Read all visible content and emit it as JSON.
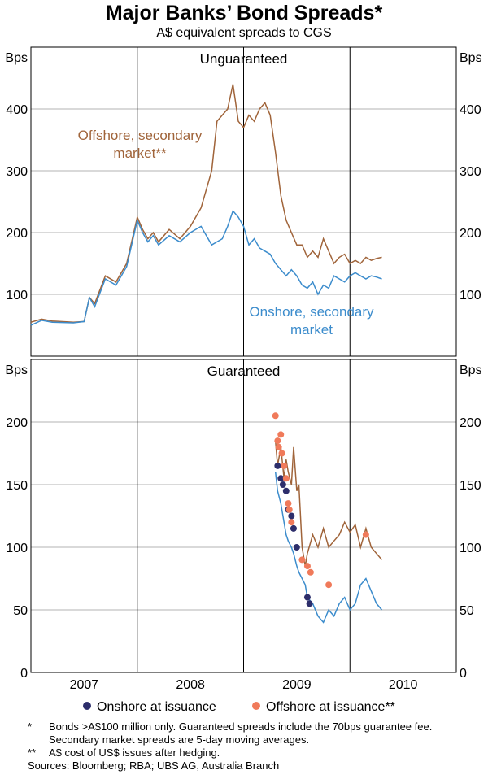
{
  "title": "Major Banks’ Bond Spreads*",
  "subtitle": "A$ equivalent spreads to CGS",
  "chart_data": [
    {
      "type": "line",
      "panel": "Unguaranteed",
      "ylabel": "Bps",
      "ylim": [
        0,
        500
      ],
      "yticks": [
        "100",
        "200",
        "300",
        "400"
      ],
      "xlim": [
        2006.5,
        2010.5
      ],
      "colors": {
        "offshore": "#a0643a",
        "onshore": "#3c8ccc",
        "onshore_dots": "#2d2e6b",
        "offshore_dots": "#f07a5a",
        "grid": "#b3b3b3"
      },
      "series": [
        {
          "name": "Offshore, secondary market**",
          "x": [
            2006.5,
            2006.6,
            2006.7,
            2006.9,
            2007.0,
            2007.05,
            2007.1,
            2007.2,
            2007.3,
            2007.4,
            2007.5,
            2007.55,
            2007.6,
            2007.65,
            2007.7,
            2007.8,
            2007.9,
            2008.0,
            2008.1,
            2008.2,
            2008.25,
            2008.3,
            2008.35,
            2008.4,
            2008.45,
            2008.5,
            2008.55,
            2008.6,
            2008.65,
            2008.7,
            2008.75,
            2008.8,
            2008.85,
            2008.9,
            2008.95,
            2009.0,
            2009.05,
            2009.1,
            2009.15,
            2009.2,
            2009.25,
            2009.3,
            2009.35,
            2009.4,
            2009.45,
            2009.5,
            2009.55,
            2009.6,
            2009.65,
            2009.7,
            2009.75,
            2009.8
          ],
          "values": [
            55,
            60,
            57,
            55,
            56,
            95,
            85,
            130,
            120,
            150,
            225,
            205,
            190,
            200,
            185,
            205,
            190,
            210,
            240,
            300,
            380,
            390,
            400,
            440,
            380,
            370,
            390,
            380,
            400,
            410,
            390,
            330,
            260,
            220,
            200,
            180,
            180,
            160,
            170,
            160,
            190,
            170,
            150,
            160,
            165,
            150,
            155,
            150,
            160,
            155,
            158,
            160
          ]
        },
        {
          "name": "Onshore, secondary market",
          "x": [
            2006.5,
            2006.6,
            2006.7,
            2006.9,
            2007.0,
            2007.05,
            2007.1,
            2007.2,
            2007.3,
            2007.4,
            2007.5,
            2007.55,
            2007.6,
            2007.65,
            2007.7,
            2007.8,
            2007.9,
            2008.0,
            2008.1,
            2008.2,
            2008.25,
            2008.3,
            2008.35,
            2008.4,
            2008.45,
            2008.5,
            2008.55,
            2008.6,
            2008.65,
            2008.7,
            2008.75,
            2008.8,
            2008.85,
            2008.9,
            2008.95,
            2009.0,
            2009.05,
            2009.1,
            2009.15,
            2009.2,
            2009.25,
            2009.3,
            2009.35,
            2009.4,
            2009.45,
            2009.5,
            2009.55,
            2009.6,
            2009.65,
            2009.7,
            2009.75,
            2009.8
          ],
          "values": [
            50,
            58,
            55,
            54,
            56,
            95,
            80,
            125,
            115,
            145,
            220,
            200,
            185,
            195,
            180,
            195,
            185,
            200,
            210,
            180,
            185,
            190,
            210,
            235,
            225,
            210,
            180,
            190,
            175,
            170,
            165,
            150,
            140,
            130,
            140,
            130,
            115,
            110,
            120,
            100,
            115,
            110,
            130,
            125,
            120,
            130,
            135,
            130,
            125,
            130,
            128,
            125
          ]
        }
      ],
      "labels": {
        "offshore": [
          "Offshore, secondary",
          "market**"
        ],
        "onshore": [
          "Onshore, secondary",
          "market"
        ]
      }
    },
    {
      "type": "line",
      "panel": "Guaranteed",
      "ylabel": "Bps",
      "ylim": [
        0,
        250
      ],
      "yticks": [
        "0",
        "50",
        "100",
        "150",
        "200"
      ],
      "xlim": [
        2006.5,
        2010.5
      ],
      "categories": [
        "2007",
        "2008",
        "2009",
        "2010"
      ],
      "series": [
        {
          "name": "Offshore, secondary market**",
          "x": [
            2008.8,
            2008.82,
            2008.85,
            2008.88,
            2008.9,
            2008.92,
            2008.95,
            2008.97,
            2009.0,
            2009.02,
            2009.05,
            2009.08,
            2009.1,
            2009.15,
            2009.2,
            2009.25,
            2009.3,
            2009.35,
            2009.4,
            2009.45,
            2009.5,
            2009.55,
            2009.6,
            2009.65,
            2009.7,
            2009.75,
            2009.8
          ],
          "values": [
            185,
            165,
            180,
            155,
            170,
            160,
            150,
            180,
            145,
            150,
            100,
            85,
            95,
            110,
            100,
            115,
            100,
            105,
            110,
            120,
            112,
            118,
            100,
            115,
            100,
            95,
            90
          ]
        },
        {
          "name": "Onshore, secondary market",
          "x": [
            2008.8,
            2008.82,
            2008.85,
            2008.88,
            2008.9,
            2008.92,
            2008.95,
            2008.97,
            2009.0,
            2009.02,
            2009.05,
            2009.08,
            2009.1,
            2009.15,
            2009.2,
            2009.25,
            2009.3,
            2009.35,
            2009.4,
            2009.45,
            2009.5,
            2009.55,
            2009.6,
            2009.65,
            2009.7,
            2009.75,
            2009.8
          ],
          "values": [
            160,
            145,
            135,
            120,
            110,
            105,
            100,
            95,
            85,
            80,
            75,
            70,
            60,
            55,
            45,
            40,
            50,
            45,
            55,
            60,
            50,
            55,
            70,
            75,
            65,
            55,
            50
          ]
        },
        {
          "name": "Onshore at issuance",
          "x": [
            2008.82,
            2008.85,
            2008.87,
            2008.9,
            2008.92,
            2008.95,
            2008.97,
            2009.0,
            2009.1,
            2009.12
          ],
          "values": [
            165,
            155,
            150,
            145,
            130,
            125,
            115,
            100,
            60,
            55
          ]
        },
        {
          "name": "Offshore at issuance**",
          "x": [
            2008.8,
            2008.82,
            2008.83,
            2008.85,
            2008.86,
            2008.88,
            2008.9,
            2008.92,
            2008.93,
            2008.95,
            2009.05,
            2009.1,
            2009.13,
            2009.3,
            2009.65
          ],
          "values": [
            205,
            185,
            180,
            190,
            175,
            165,
            155,
            135,
            130,
            120,
            90,
            85,
            80,
            70,
            110
          ]
        }
      ]
    }
  ],
  "legend": [
    {
      "label": "Onshore at issuance",
      "color": "#2d2e6b"
    },
    {
      "label": "Offshore at issuance**",
      "color": "#f07a5a"
    }
  ],
  "notes": [
    {
      "mark": "*",
      "text": "Bonds >A$100 million only. Guaranteed spreads include the 70bps guarantee fee. Secondary market spreads are 5-day moving averages."
    },
    {
      "mark": "**",
      "text": "A$ cost of US$ issues after hedging."
    }
  ],
  "sources": "Sources: Bloomberg; RBA; UBS AG, Australia Branch"
}
